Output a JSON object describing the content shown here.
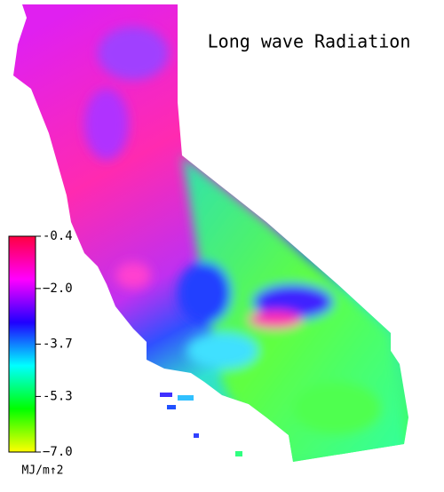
{
  "title": "Long wave Radiation",
  "colorbar": {
    "range": [
      -7,
      -0.4
    ],
    "ticks": [
      -0.4,
      {
        "value": -2,
        "label": "−2.0"
      },
      -3.7,
      -5.3,
      {
        "value": -7,
        "label": "−7.0"
      }
    ],
    "colors": [
      "#ff0040",
      "#ff00ff",
      "#2000ff",
      "#00ffff",
      "#00ff00",
      "#ffff00"
    ],
    "unit": "MJ/m↑2"
  }
}
